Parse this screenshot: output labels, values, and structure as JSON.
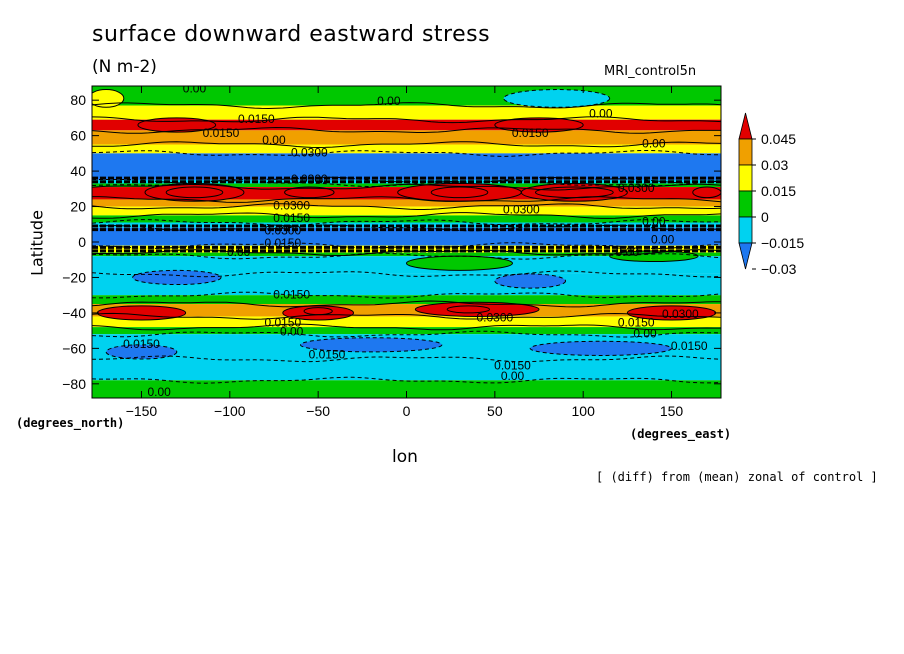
{
  "header": {
    "title": "surface downward eastward stress",
    "units": "(N m-2)",
    "model": "MRI_control5n"
  },
  "axes": {
    "ylabel": "Latitude",
    "xlabel": "lon",
    "y_units": "(degrees_north)",
    "x_units": "(degrees_east)"
  },
  "note": "[ (diff) from (mean) zonal of control ]",
  "chart_data": {
    "type": "heatmap",
    "title": "surface downward eastward stress",
    "subtitle": "(N m-2)",
    "xlabel": "lon",
    "ylabel": "Latitude",
    "xlim": [
      -178,
      178
    ],
    "ylim": [
      -88,
      88
    ],
    "xticks": [
      -150,
      -100,
      -50,
      0,
      50,
      100,
      150
    ],
    "yticks": [
      -80,
      -60,
      -40,
      -20,
      0,
      20,
      40,
      60,
      80
    ],
    "colorbar": {
      "levels": [
        -0.03,
        -0.015,
        0,
        0.015,
        0.03,
        0.045
      ],
      "labels": [
        "0.045",
        "0.03",
        "0.015",
        "0",
        "−0.015",
        "−0.03"
      ],
      "colors": [
        "#1e78f0",
        "#00d2f0",
        "#00c800",
        "#ffff00",
        "#f0a000",
        "#e10000"
      ]
    },
    "bands": [
      {
        "lat": [
          77,
          88
        ],
        "level": 0
      },
      {
        "lat": [
          69,
          77
        ],
        "level": 1
      },
      {
        "lat": [
          63,
          69
        ],
        "level": 3
      },
      {
        "lat": [
          55,
          63
        ],
        "level": 2
      },
      {
        "lat": [
          50,
          55
        ],
        "level": 1
      },
      {
        "lat": [
          35,
          50
        ],
        "level": -2
      },
      {
        "lat": [
          33,
          35
        ],
        "level": -1
      },
      {
        "lat": [
          31,
          33
        ],
        "level": 0
      },
      {
        "lat": [
          24,
          31
        ],
        "level": 3
      },
      {
        "lat": [
          20,
          24
        ],
        "level": 2
      },
      {
        "lat": [
          15,
          20
        ],
        "level": 1
      },
      {
        "lat": [
          11,
          15
        ],
        "level": 0
      },
      {
        "lat": [
          8,
          11
        ],
        "level": -1
      },
      {
        "lat": [
          -2,
          8
        ],
        "level": -2
      },
      {
        "lat": [
          -6,
          -2
        ],
        "level": 1
      },
      {
        "lat": [
          -8,
          -6
        ],
        "level": 0
      },
      {
        "lat": [
          -18,
          -8
        ],
        "level": -1
      },
      {
        "lat": [
          -30,
          -18
        ],
        "level": -1
      },
      {
        "lat": [
          -35,
          -30
        ],
        "level": 0
      },
      {
        "lat": [
          -42,
          -35
        ],
        "level": 2
      },
      {
        "lat": [
          -48,
          -42
        ],
        "level": 1
      },
      {
        "lat": [
          -52,
          -48
        ],
        "level": 0
      },
      {
        "lat": [
          -66,
          -52
        ],
        "level": -1
      },
      {
        "lat": [
          -78,
          -66
        ],
        "level": -1
      },
      {
        "lat": [
          -88,
          -78
        ],
        "level": 0
      }
    ],
    "blobs": [
      {
        "lon": -130,
        "lat": 66,
        "rlon": 22,
        "rlat": 4,
        "level": 4
      },
      {
        "lon": 75,
        "lat": 66,
        "rlon": 25,
        "rlat": 4,
        "level": 4
      },
      {
        "lon": -170,
        "lat": 81,
        "rlon": 10,
        "rlat": 5,
        "level": 1
      },
      {
        "lon": 85,
        "lat": 81,
        "rlon": 30,
        "rlat": 5,
        "level": -1
      },
      {
        "lon": -120,
        "lat": 28,
        "rlon": 16,
        "rlat": 3,
        "level": 5
      },
      {
        "lon": -55,
        "lat": 28,
        "rlon": 14,
        "rlat": 3,
        "level": 5
      },
      {
        "lon": 30,
        "lat": 28,
        "rlon": 16,
        "rlat": 3,
        "level": 5
      },
      {
        "lon": 95,
        "lat": 28,
        "rlon": 22,
        "rlat": 3,
        "level": 5
      },
      {
        "lon": 170,
        "lat": 28,
        "rlon": 8,
        "rlat": 3,
        "level": 5
      },
      {
        "lon": -120,
        "lat": 28,
        "rlon": 28,
        "rlat": 5,
        "level": 4
      },
      {
        "lon": 30,
        "lat": 28,
        "rlon": 35,
        "rlat": 5,
        "level": 4
      },
      {
        "lon": 95,
        "lat": 28,
        "rlon": 30,
        "rlat": 5,
        "level": 4
      },
      {
        "lon": -150,
        "lat": -40,
        "rlon": 25,
        "rlat": 4,
        "level": 3
      },
      {
        "lon": -50,
        "lat": -40,
        "rlon": 20,
        "rlat": 4,
        "level": 3
      },
      {
        "lon": 40,
        "lat": -38,
        "rlon": 35,
        "rlat": 4,
        "level": 3
      },
      {
        "lon": 150,
        "lat": -40,
        "rlon": 25,
        "rlat": 4,
        "level": 3
      },
      {
        "lon": -50,
        "lat": -39,
        "rlon": 8,
        "rlat": 2,
        "level": 5
      },
      {
        "lon": 35,
        "lat": -38,
        "rlon": 12,
        "rlat": 2,
        "level": 5
      },
      {
        "lon": -130,
        "lat": -20,
        "rlon": 25,
        "rlat": 4,
        "level": -2
      },
      {
        "lon": 70,
        "lat": -22,
        "rlon": 20,
        "rlat": 4,
        "level": -2
      },
      {
        "lon": -20,
        "lat": -58,
        "rlon": 40,
        "rlat": 4,
        "level": -2
      },
      {
        "lon": 110,
        "lat": -60,
        "rlon": 40,
        "rlat": 4,
        "level": -2
      },
      {
        "lon": -150,
        "lat": -62,
        "rlon": 20,
        "rlat": 4,
        "level": -2
      },
      {
        "lon": 30,
        "lat": -12,
        "rlon": 30,
        "rlat": 4,
        "level": 0
      },
      {
        "lon": 140,
        "lat": -8,
        "rlon": 25,
        "rlat": 3,
        "level": 0
      }
    ],
    "contour_labels": [
      {
        "text": "0.00",
        "lon": -120,
        "lat": 86
      },
      {
        "text": "0.00",
        "lon": -10,
        "lat": 79
      },
      {
        "text": "0.00",
        "lon": 110,
        "lat": 72
      },
      {
        "text": "0.0150",
        "lon": -85,
        "lat": 69
      },
      {
        "text": "0.0150",
        "lon": -105,
        "lat": 61
      },
      {
        "text": "0.00",
        "lon": -75,
        "lat": 57
      },
      {
        "text": "0.0300",
        "lon": -55,
        "lat": 50
      },
      {
        "text": "0.0150",
        "lon": 70,
        "lat": 61
      },
      {
        "text": "0.00",
        "lon": 140,
        "lat": 55
      },
      {
        "text": "0.0300",
        "lon": -55,
        "lat": 35
      },
      {
        "text": "0.0300",
        "lon": 130,
        "lat": 30
      },
      {
        "text": "0.0300",
        "lon": -65,
        "lat": 20
      },
      {
        "text": "0.0300",
        "lon": 65,
        "lat": 18
      },
      {
        "text": "0.0150",
        "lon": -65,
        "lat": 13
      },
      {
        "text": "0.00",
        "lon": 140,
        "lat": 11
      },
      {
        "text": "0.0300",
        "lon": -70,
        "lat": 6
      },
      {
        "text": "0.00",
        "lon": 145,
        "lat": 1
      },
      {
        "text": "0.0150",
        "lon": -70,
        "lat": -1
      },
      {
        "text": "0.00",
        "lon": -95,
        "lat": -6
      },
      {
        "text": "0.00",
        "lon": 125,
        "lat": -6
      },
      {
        "text": "0.0150",
        "lon": -65,
        "lat": -30
      },
      {
        "text": "0.0300",
        "lon": 50,
        "lat": -43
      },
      {
        "text": "0.0300",
        "lon": 155,
        "lat": -41
      },
      {
        "text": "0.0150",
        "lon": -70,
        "lat": -46
      },
      {
        "text": "0.00",
        "lon": -65,
        "lat": -51
      },
      {
        "text": "0.0150",
        "lon": 130,
        "lat": -46
      },
      {
        "text": "0.00",
        "lon": 135,
        "lat": -52
      },
      {
        "text": "0.0150",
        "lon": 160,
        "lat": -59
      },
      {
        "text": "0.0150",
        "lon": -150,
        "lat": -58
      },
      {
        "text": "0.0150",
        "lon": -45,
        "lat": -64
      },
      {
        "text": "0.0150",
        "lon": 60,
        "lat": -70
      },
      {
        "text": "0.00",
        "lon": 60,
        "lat": -76
      },
      {
        "text": "0.00",
        "lon": -140,
        "lat": -85
      }
    ]
  }
}
